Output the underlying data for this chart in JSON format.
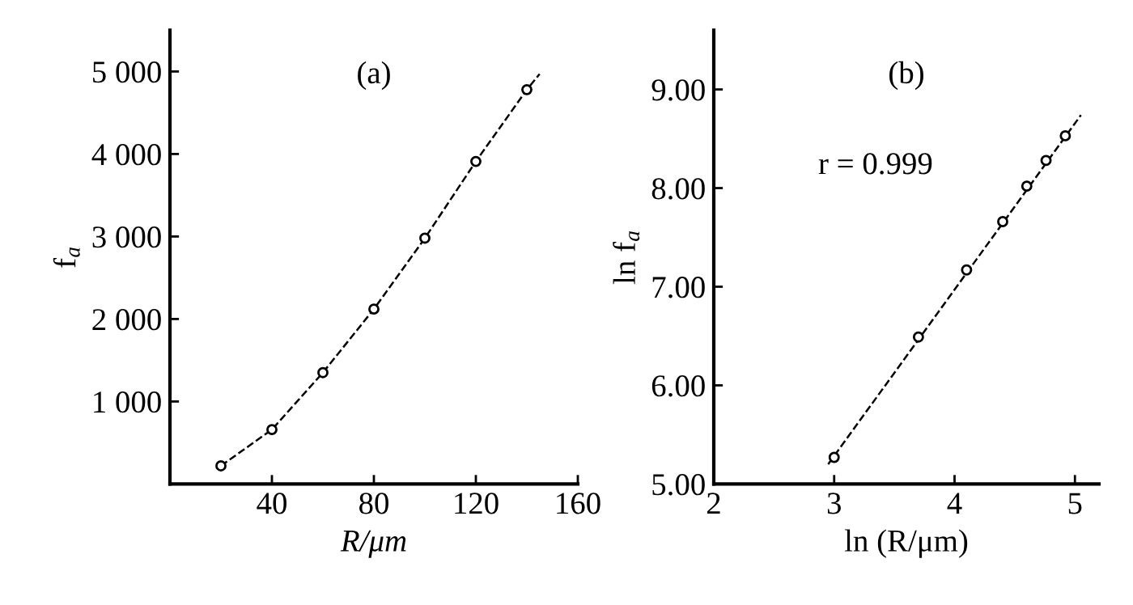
{
  "chart_data": [
    {
      "type": "scatter",
      "xlabel": "R/μm",
      "ylabel": "f$_{a}$",
      "annotations": [
        "(a)"
      ],
      "xlim": [
        0,
        160
      ],
      "ylim": [
        0,
        5500
      ],
      "xticks": [
        40,
        80,
        120,
        160
      ],
      "yticks": [
        {
          "value": 1000,
          "label": "1 000"
        },
        {
          "value": 2000,
          "label": "2 000"
        },
        {
          "value": 3000,
          "label": "3 000"
        },
        {
          "value": 4000,
          "label": "4 000"
        },
        {
          "value": 5000,
          "label": "5 000"
        }
      ],
      "grid": false,
      "series": [
        {
          "marker": "circle",
          "color": "#000000",
          "x": [
            20,
            40,
            60,
            80,
            100,
            120,
            140
          ],
          "values": [
            220,
            660,
            1350,
            2120,
            2980,
            3910,
            4780
          ]
        },
        {
          "type": "line",
          "marker": "none",
          "line_style": "dashed",
          "color": "#000000",
          "x": [
            20,
            40,
            60,
            80,
            100,
            120,
            140,
            145
          ],
          "values": [
            220,
            660,
            1350,
            2120,
            2980,
            3910,
            4780,
            4970
          ]
        }
      ]
    },
    {
      "type": "scatter",
      "xlabel": "ln (R/μm)",
      "ylabel": "ln f$_{a}$",
      "annotations": [
        "(b)",
        "r = 0.999"
      ],
      "xlim": [
        2,
        5.2
      ],
      "ylim": [
        5,
        9.6
      ],
      "xticks": [
        2,
        3,
        4,
        5
      ],
      "yticks": [
        {
          "value": 5,
          "label": "5.00"
        },
        {
          "value": 6,
          "label": "6.00"
        },
        {
          "value": 7,
          "label": "7.00"
        },
        {
          "value": 8,
          "label": "8.00"
        },
        {
          "value": 9,
          "label": "9.00"
        }
      ],
      "grid": false,
      "series": [
        {
          "marker": "circle",
          "color": "#000000",
          "x": [
            3.0,
            3.7,
            4.1,
            4.4,
            4.6,
            4.76,
            4.92
          ],
          "values": [
            5.27,
            6.49,
            7.17,
            7.66,
            8.02,
            8.28,
            8.53
          ]
        },
        {
          "type": "line",
          "marker": "none",
          "line_style": "dashed",
          "color": "#000000",
          "x": [
            2.95,
            5.05
          ],
          "values": [
            5.2,
            8.74
          ]
        }
      ]
    }
  ]
}
